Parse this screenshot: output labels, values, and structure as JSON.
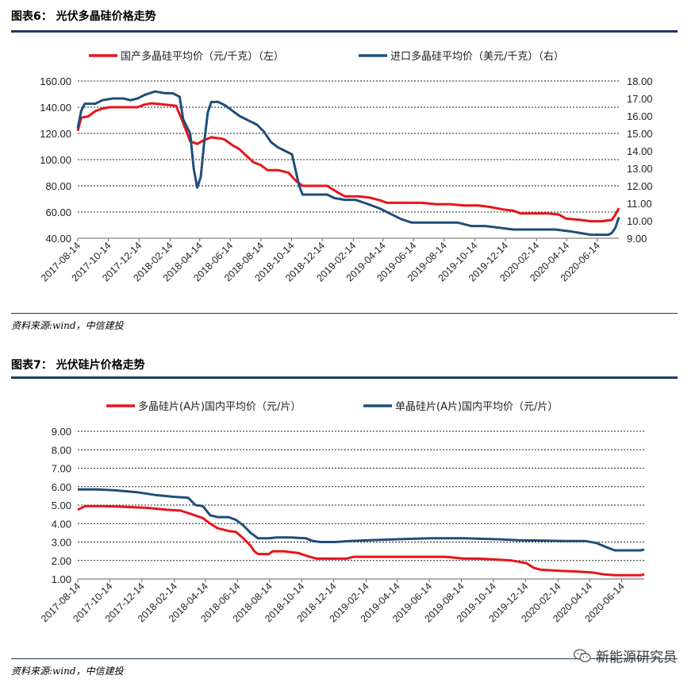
{
  "fig6": {
    "title": "图表6：  光伏多晶硅价格走势",
    "source": "资料来源:wind，中信建投"
  },
  "fig7": {
    "title": "图表7：  光伏硅片价格走势",
    "source": "资料来源:wind，中信建投"
  },
  "watermark": {
    "text": "新能源研究员",
    "icon": "wechat-icon"
  },
  "colors": {
    "red": "#e8141a",
    "blue": "#1f4e79",
    "rule": "#1f3b63"
  },
  "chart_data": [
    {
      "type": "line",
      "x_tick_labels": [
        "2017-08-14",
        "2017-10-14",
        "2017-12-14",
        "2018-02-14",
        "2018-04-14",
        "2018-06-14",
        "2018-08-14",
        "2018-10-14",
        "2018-12-14",
        "2019-02-14",
        "2019-04-14",
        "2019-06-14",
        "2019-08-14",
        "2019-10-14",
        "2019-12-14",
        "2020-02-14",
        "2020-04-14",
        "2020-06-14"
      ],
      "y_left": {
        "ylim": [
          40,
          160
        ],
        "ticks": [
          "40.00",
          "60.00",
          "80.00",
          "100.00",
          "120.00",
          "140.00",
          "160.00"
        ]
      },
      "y_right": {
        "ylim": [
          9,
          18
        ],
        "ticks": [
          "9.00",
          "10.00",
          "11.00",
          "12.00",
          "13.00",
          "14.00",
          "15.00",
          "16.00",
          "17.00",
          "18.00"
        ]
      },
      "grid": true,
      "legend_position": "top",
      "series": [
        {
          "name": "国产多晶硅平均价（元/千克）（左）",
          "axis": "left",
          "color": "#e8141a",
          "points": [
            [
              "2017-08-14",
              122
            ],
            [
              "2017-08-21",
              132
            ],
            [
              "2017-09-04",
              133
            ],
            [
              "2017-09-18",
              137
            ],
            [
              "2017-10-02",
              139
            ],
            [
              "2017-10-16",
              140
            ],
            [
              "2017-11-13",
              140
            ],
            [
              "2017-12-11",
              140
            ],
            [
              "2017-12-25",
              142
            ],
            [
              "2018-01-08",
              143
            ],
            [
              "2018-02-05",
              142
            ],
            [
              "2018-02-26",
              141
            ],
            [
              "2018-03-12",
              128
            ],
            [
              "2018-03-26",
              114
            ],
            [
              "2018-04-09",
              112
            ],
            [
              "2018-04-23",
              115
            ],
            [
              "2018-05-07",
              117
            ],
            [
              "2018-05-28",
              116
            ],
            [
              "2018-06-04",
              115
            ],
            [
              "2018-06-18",
              111
            ],
            [
              "2018-07-02",
              108
            ],
            [
              "2018-07-16",
              103
            ],
            [
              "2018-07-30",
              98
            ],
            [
              "2018-08-13",
              96
            ],
            [
              "2018-08-27",
              92
            ],
            [
              "2018-09-17",
              92
            ],
            [
              "2018-10-08",
              90
            ],
            [
              "2018-10-22",
              84
            ],
            [
              "2018-11-05",
              80
            ],
            [
              "2018-12-03",
              80
            ],
            [
              "2018-12-24",
              80
            ],
            [
              "2019-01-14",
              75
            ],
            [
              "2019-01-28",
              72
            ],
            [
              "2019-02-25",
              72
            ],
            [
              "2019-03-18",
              71
            ],
            [
              "2019-04-08",
              69
            ],
            [
              "2019-04-22",
              67
            ],
            [
              "2019-06-03",
              67
            ],
            [
              "2019-07-01",
              67
            ],
            [
              "2019-07-29",
              66
            ],
            [
              "2019-08-26",
              66
            ],
            [
              "2019-09-23",
              65
            ],
            [
              "2019-10-21",
              65
            ],
            [
              "2019-11-11",
              64
            ],
            [
              "2019-12-09",
              62
            ],
            [
              "2019-12-30",
              61
            ],
            [
              "2020-01-13",
              59
            ],
            [
              "2020-02-10",
              59
            ],
            [
              "2020-03-09",
              59
            ],
            [
              "2020-03-30",
              58
            ],
            [
              "2020-04-13",
              55
            ],
            [
              "2020-05-11",
              54
            ],
            [
              "2020-06-01",
              53
            ],
            [
              "2020-06-22",
              53
            ],
            [
              "2020-07-13",
              54
            ],
            [
              "2020-07-20",
              58
            ],
            [
              "2020-07-27",
              63
            ]
          ]
        },
        {
          "name": "进口多晶硅平均价（美元/千克）（右）",
          "axis": "right",
          "color": "#1f4e79",
          "points": [
            [
              "2017-08-14",
              15.3
            ],
            [
              "2017-08-21",
              16.3
            ],
            [
              "2017-08-28",
              16.7
            ],
            [
              "2017-09-18",
              16.7
            ],
            [
              "2017-10-02",
              16.9
            ],
            [
              "2017-10-23",
              17.0
            ],
            [
              "2017-11-13",
              17.0
            ],
            [
              "2017-11-27",
              16.9
            ],
            [
              "2017-12-11",
              17.0
            ],
            [
              "2017-12-25",
              17.2
            ],
            [
              "2018-01-15",
              17.4
            ],
            [
              "2018-02-05",
              17.3
            ],
            [
              "2018-02-19",
              17.3
            ],
            [
              "2018-03-05",
              17.1
            ],
            [
              "2018-03-12",
              15.8
            ],
            [
              "2018-03-26",
              15.0
            ],
            [
              "2018-04-02",
              13.0
            ],
            [
              "2018-04-09",
              11.9
            ],
            [
              "2018-04-16",
              12.5
            ],
            [
              "2018-04-23",
              14.5
            ],
            [
              "2018-04-30",
              16.2
            ],
            [
              "2018-05-07",
              16.8
            ],
            [
              "2018-05-21",
              16.8
            ],
            [
              "2018-06-04",
              16.6
            ],
            [
              "2018-06-18",
              16.3
            ],
            [
              "2018-07-02",
              16.0
            ],
            [
              "2018-07-23",
              15.7
            ],
            [
              "2018-08-06",
              15.5
            ],
            [
              "2018-08-20",
              15.1
            ],
            [
              "2018-09-03",
              14.5
            ],
            [
              "2018-09-17",
              14.2
            ],
            [
              "2018-10-01",
              14.0
            ],
            [
              "2018-10-15",
              13.8
            ],
            [
              "2018-10-29",
              12.0
            ],
            [
              "2018-11-05",
              11.5
            ],
            [
              "2018-11-26",
              11.5
            ],
            [
              "2018-12-24",
              11.5
            ],
            [
              "2019-01-07",
              11.3
            ],
            [
              "2019-01-28",
              11.2
            ],
            [
              "2019-02-18",
              11.2
            ],
            [
              "2019-03-11",
              11.0
            ],
            [
              "2019-04-08",
              10.7
            ],
            [
              "2019-04-29",
              10.4
            ],
            [
              "2019-05-20",
              10.1
            ],
            [
              "2019-06-10",
              9.9
            ],
            [
              "2019-07-01",
              9.9
            ],
            [
              "2019-08-12",
              9.9
            ],
            [
              "2019-09-09",
              9.9
            ],
            [
              "2019-10-07",
              9.7
            ],
            [
              "2019-11-04",
              9.7
            ],
            [
              "2019-12-02",
              9.6
            ],
            [
              "2019-12-30",
              9.5
            ],
            [
              "2020-01-27",
              9.5
            ],
            [
              "2020-02-24",
              9.5
            ],
            [
              "2020-03-23",
              9.5
            ],
            [
              "2020-04-20",
              9.4
            ],
            [
              "2020-05-11",
              9.3
            ],
            [
              "2020-06-01",
              9.2
            ],
            [
              "2020-06-22",
              9.2
            ],
            [
              "2020-07-06",
              9.2
            ],
            [
              "2020-07-13",
              9.3
            ],
            [
              "2020-07-20",
              9.6
            ],
            [
              "2020-07-27",
              10.2
            ]
          ]
        }
      ]
    },
    {
      "type": "line",
      "x_tick_labels": [
        "2017-08-14",
        "2017-10-14",
        "2017-12-14",
        "2018-02-14",
        "2018-04-14",
        "2018-06-14",
        "2018-08-14",
        "2018-10-14",
        "2018-12-14",
        "2019-02-14",
        "2019-04-14",
        "2019-06-14",
        "2019-08-14",
        "2019-10-14",
        "2019-12-14",
        "2020-02-14",
        "2020-04-14",
        "2020-06-14"
      ],
      "y_left": {
        "ylim": [
          1,
          9
        ],
        "ticks": [
          "1.00",
          "2.00",
          "3.00",
          "4.00",
          "5.00",
          "6.00",
          "7.00",
          "8.00",
          "9.00"
        ]
      },
      "grid": true,
      "legend_position": "top",
      "series": [
        {
          "name": "多晶硅片(A片)国内平均价（元/片）",
          "axis": "left",
          "color": "#e8141a",
          "points": [
            [
              "2017-08-14",
              4.75
            ],
            [
              "2017-08-28",
              4.95
            ],
            [
              "2017-10-02",
              4.95
            ],
            [
              "2017-11-13",
              4.9
            ],
            [
              "2017-12-25",
              4.85
            ],
            [
              "2018-01-29",
              4.75
            ],
            [
              "2018-02-26",
              4.7
            ],
            [
              "2018-03-19",
              4.5
            ],
            [
              "2018-04-09",
              4.3
            ],
            [
              "2018-04-23",
              4.0
            ],
            [
              "2018-05-07",
              3.75
            ],
            [
              "2018-05-28",
              3.6
            ],
            [
              "2018-06-11",
              3.55
            ],
            [
              "2018-06-25",
              3.2
            ],
            [
              "2018-07-09",
              2.8
            ],
            [
              "2018-07-16",
              2.5
            ],
            [
              "2018-07-23",
              2.35
            ],
            [
              "2018-08-13",
              2.35
            ],
            [
              "2018-08-20",
              2.5
            ],
            [
              "2018-09-10",
              2.5
            ],
            [
              "2018-10-08",
              2.4
            ],
            [
              "2018-10-29",
              2.2
            ],
            [
              "2018-11-12",
              2.1
            ],
            [
              "2018-12-10",
              2.1
            ],
            [
              "2019-01-07",
              2.1
            ],
            [
              "2019-01-21",
              2.2
            ],
            [
              "2019-02-25",
              2.2
            ],
            [
              "2019-03-25",
              2.2
            ],
            [
              "2019-05-20",
              2.2
            ],
            [
              "2019-07-15",
              2.2
            ],
            [
              "2019-08-19",
              2.1
            ],
            [
              "2019-09-16",
              2.1
            ],
            [
              "2019-10-21",
              2.05
            ],
            [
              "2019-11-18",
              2.0
            ],
            [
              "2019-12-16",
              1.85
            ],
            [
              "2019-12-30",
              1.6
            ],
            [
              "2020-01-13",
              1.5
            ],
            [
              "2020-02-10",
              1.45
            ],
            [
              "2020-03-23",
              1.4
            ],
            [
              "2020-04-20",
              1.35
            ],
            [
              "2020-05-11",
              1.25
            ],
            [
              "2020-06-01",
              1.2
            ],
            [
              "2020-06-29",
              1.2
            ],
            [
              "2020-07-20",
              1.2
            ],
            [
              "2020-07-27",
              1.25
            ]
          ]
        },
        {
          "name": "单晶硅片(A片)国内平均价（元/片）",
          "axis": "left",
          "color": "#1f4e79",
          "points": [
            [
              "2017-08-14",
              5.85
            ],
            [
              "2017-09-18",
              5.85
            ],
            [
              "2017-10-23",
              5.8
            ],
            [
              "2017-12-04",
              5.7
            ],
            [
              "2018-01-08",
              5.55
            ],
            [
              "2018-02-12",
              5.45
            ],
            [
              "2018-03-12",
              5.4
            ],
            [
              "2018-03-26",
              5.0
            ],
            [
              "2018-04-09",
              4.95
            ],
            [
              "2018-04-23",
              4.45
            ],
            [
              "2018-05-07",
              4.35
            ],
            [
              "2018-05-28",
              4.35
            ],
            [
              "2018-06-11",
              4.2
            ],
            [
              "2018-06-25",
              3.9
            ],
            [
              "2018-07-09",
              3.5
            ],
            [
              "2018-07-23",
              3.2
            ],
            [
              "2018-08-13",
              3.2
            ],
            [
              "2018-08-27",
              3.25
            ],
            [
              "2018-09-24",
              3.25
            ],
            [
              "2018-10-22",
              3.2
            ],
            [
              "2018-11-05",
              3.05
            ],
            [
              "2018-11-19",
              3.0
            ],
            [
              "2018-12-17",
              3.0
            ],
            [
              "2019-01-14",
              3.05
            ],
            [
              "2019-02-18",
              3.1
            ],
            [
              "2019-04-15",
              3.15
            ],
            [
              "2019-06-17",
              3.2
            ],
            [
              "2019-08-19",
              3.2
            ],
            [
              "2019-10-21",
              3.15
            ],
            [
              "2019-12-02",
              3.1
            ],
            [
              "2020-01-06",
              3.08
            ],
            [
              "2020-03-02",
              3.05
            ],
            [
              "2020-04-06",
              3.05
            ],
            [
              "2020-04-27",
              2.95
            ],
            [
              "2020-05-18",
              2.7
            ],
            [
              "2020-06-01",
              2.55
            ],
            [
              "2020-06-22",
              2.55
            ],
            [
              "2020-07-20",
              2.55
            ],
            [
              "2020-07-27",
              2.6
            ]
          ]
        }
      ]
    }
  ]
}
